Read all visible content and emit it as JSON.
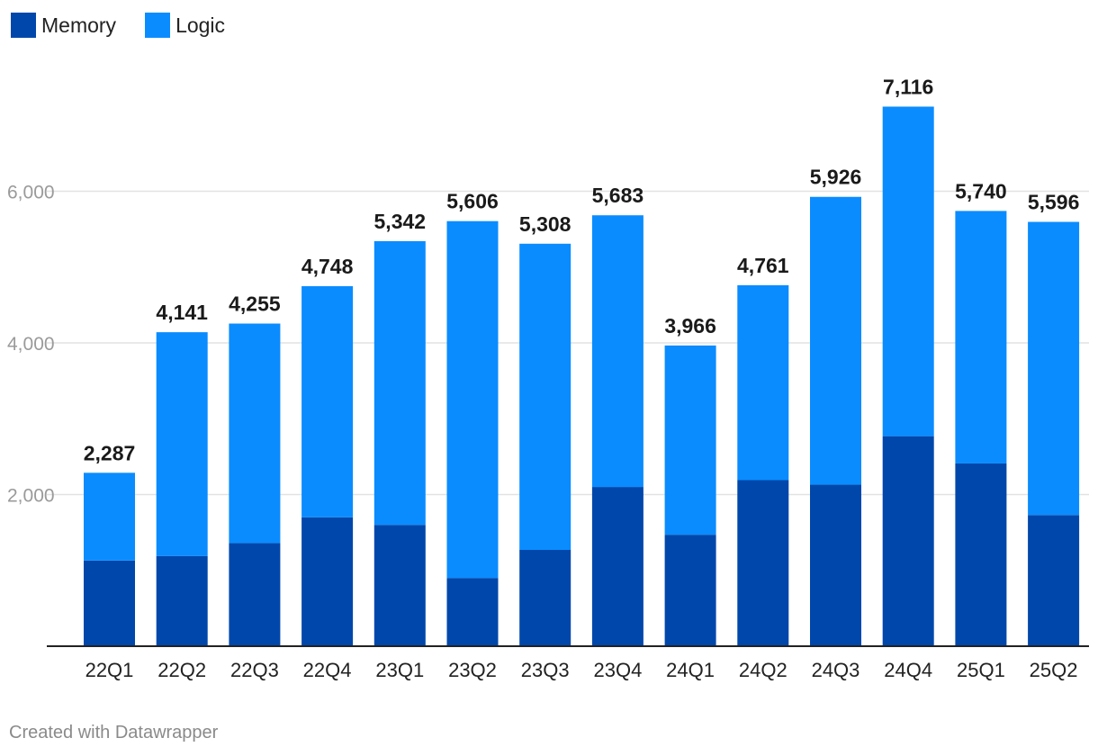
{
  "colors": {
    "memory": "#0047ab",
    "logic": "#0a8cff"
  },
  "legend": [
    {
      "label": "Memory",
      "color": "#0047ab"
    },
    {
      "label": "Logic",
      "color": "#0a8cff"
    }
  ],
  "credit": "Created with Datawrapper",
  "chart_data": {
    "type": "bar",
    "stacked": true,
    "categories": [
      "22Q1",
      "22Q2",
      "22Q3",
      "22Q4",
      "23Q1",
      "23Q2",
      "23Q3",
      "23Q4",
      "24Q1",
      "24Q2",
      "24Q3",
      "24Q4",
      "25Q1",
      "25Q2"
    ],
    "series": [
      {
        "name": "Memory",
        "values": [
          1130,
          1190,
          1360,
          1700,
          1600,
          900,
          1270,
          2100,
          1470,
          2190,
          2130,
          2770,
          2410,
          1730
        ]
      },
      {
        "name": "Logic",
        "values": [
          1157,
          2951,
          2895,
          3048,
          3742,
          4706,
          4038,
          3583,
          2496,
          2571,
          3796,
          4346,
          3330,
          3866
        ]
      }
    ],
    "totals": [
      2287,
      4141,
      4255,
      4748,
      5342,
      5606,
      5308,
      5683,
      3966,
      4761,
      5926,
      7116,
      5740,
      5596
    ],
    "total_labels": [
      "2,287",
      "4,141",
      "4,255",
      "4,748",
      "5,342",
      "5,606",
      "5,308",
      "5,683",
      "3,966",
      "4,761",
      "5,926",
      "7,116",
      "5,740",
      "5,596"
    ],
    "y_ticks": [
      2000,
      4000,
      6000
    ],
    "y_tick_labels": [
      "2,000",
      "4,000",
      "6,000"
    ],
    "ylim": [
      0,
      7800
    ],
    "grid": true,
    "legend_position": "top-left",
    "title": "",
    "xlabel": "",
    "ylabel": ""
  }
}
